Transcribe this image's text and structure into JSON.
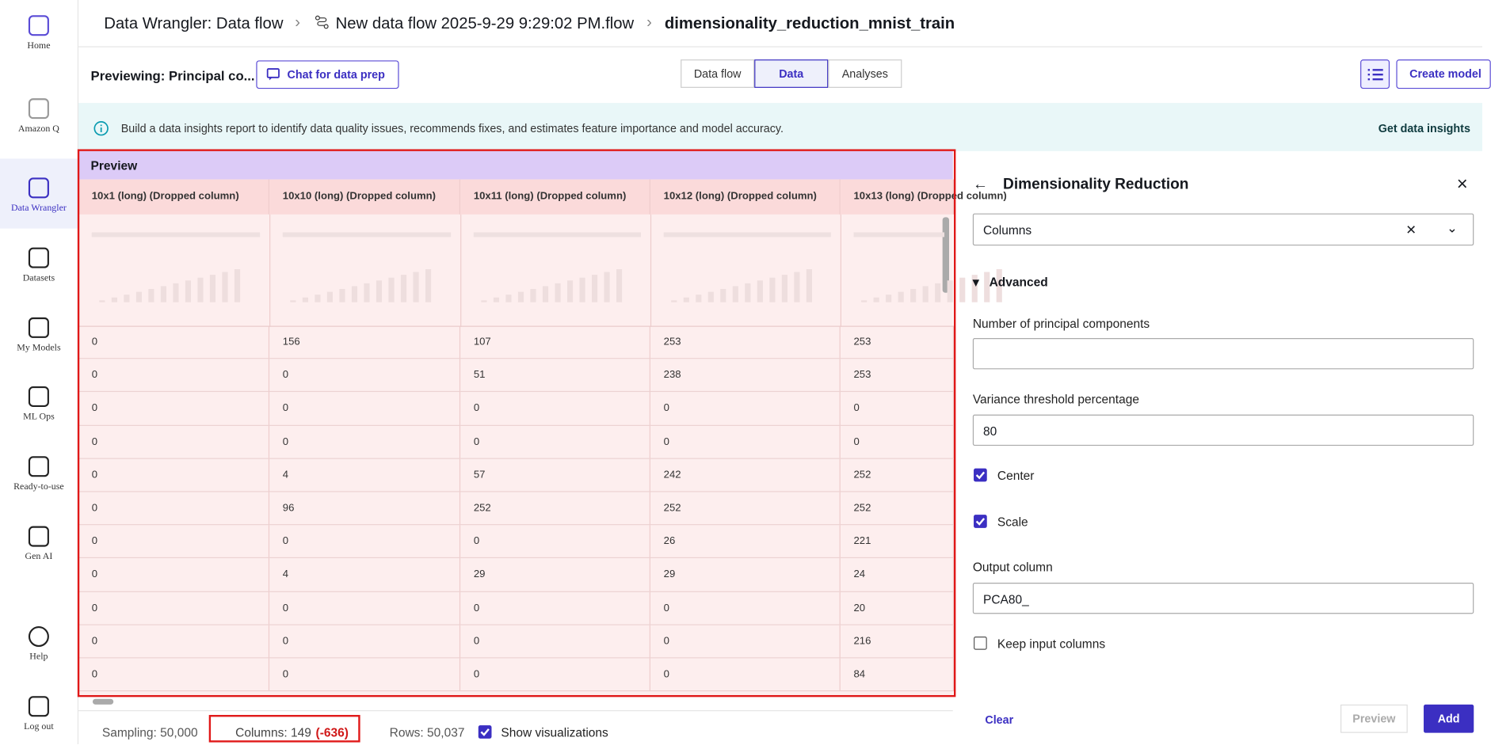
{
  "sidebar": [
    "Home",
    "Amazon Q",
    "Data Wrangler",
    "Datasets",
    "My Models",
    "ML Ops",
    "Ready-to-use",
    "Gen AI",
    "Help",
    "Log out"
  ],
  "breadcrumb": [
    "Data Wrangler: Data flow",
    "New data flow 2025-9-29 9:29:02 PM.flow",
    "dimensionality_reduction_mnist_train"
  ],
  "toolbar": {
    "previewing": "Previewing: Principal co...",
    "chat": "Chat for data prep",
    "tabs": [
      "Data flow",
      "Data",
      "Analyses"
    ],
    "active_tab": 1,
    "create": "Create model"
  },
  "banner": {
    "text": "Build a data insights report to identify data quality issues, recommends fixes, and estimates feature importance and model accuracy.",
    "link": "Get data insights"
  },
  "table": {
    "title": "Preview",
    "headers": [
      "10x1 (long) (Dropped column)",
      "10x10 (long) (Dropped column)",
      "10x11 (long) (Dropped column)",
      "10x12 (long) (Dropped column)",
      "10x13 (long) (Dropped column)"
    ],
    "rows": [
      [
        0,
        156,
        107,
        253,
        253
      ],
      [
        0,
        0,
        51,
        238,
        253
      ],
      [
        0,
        0,
        0,
        0,
        0
      ],
      [
        0,
        0,
        0,
        0,
        0
      ],
      [
        0,
        4,
        57,
        242,
        252
      ],
      [
        0,
        96,
        252,
        252,
        252
      ],
      [
        0,
        0,
        0,
        26,
        221
      ],
      [
        0,
        4,
        29,
        29,
        24
      ],
      [
        0,
        0,
        0,
        0,
        20
      ],
      [
        0,
        0,
        0,
        0,
        216
      ],
      [
        0,
        0,
        0,
        0,
        84
      ]
    ]
  },
  "status": {
    "sampling": "Sampling: 50,000",
    "columns": "Columns: 149",
    "columns_delta": "(-636)",
    "rows": "Rows: 50,037",
    "show_viz": "Show visualizations",
    "show_viz_checked": true
  },
  "panel": {
    "title": "Dimensionality Reduction",
    "output_format": "Columns",
    "advanced": "Advanced",
    "components_label": "Number of principal components",
    "components_value": "",
    "variance_label": "Variance threshold percentage",
    "variance_value": "80",
    "center": "Center",
    "center_checked": true,
    "scale": "Scale",
    "scale_checked": true,
    "output_label": "Output column",
    "output_value": "PCA80_",
    "keep": "Keep input columns",
    "keep_checked": false,
    "clear": "Clear",
    "preview": "Preview",
    "add": "Add"
  }
}
